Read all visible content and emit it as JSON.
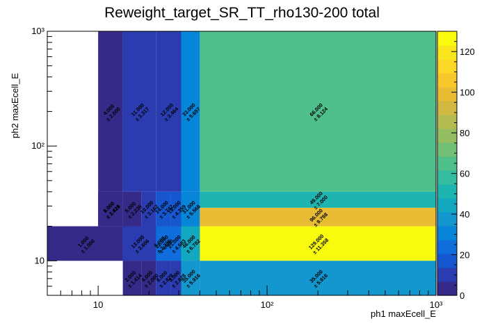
{
  "chart_data": {
    "type": "heatmap",
    "title": "Reweight_target_SR_TT_rho130-200 total",
    "xlabel": "ph1 maxEcell_E",
    "ylabel": "ph2 maxEcell_E",
    "xscale": "log",
    "yscale": "log",
    "xlim": [
      5,
      1000
    ],
    "ylim": [
      5,
      1000
    ],
    "zlim": [
      0,
      130
    ],
    "x_tick_labels": [
      "10",
      "10²",
      "10³"
    ],
    "y_tick_labels": [
      "10",
      "10²",
      "10³"
    ],
    "colorbar_ticks": [
      "0",
      "20",
      "40",
      "60",
      "80",
      "100",
      "120"
    ],
    "x_bin_edges": [
      5,
      10,
      14,
      18,
      22,
      27,
      31,
      40,
      1000
    ],
    "y_bin_edges": [
      5,
      10,
      20,
      29,
      40,
      1000
    ],
    "cells": [
      {
        "x": [
          5,
          14
        ],
        "y": [
          10,
          20
        ],
        "value": 1,
        "label": "1.000",
        "error": "± 1.000"
      },
      {
        "x": [
          14,
          40
        ],
        "y": [
          10,
          20
        ],
        "value": 5,
        "label": "5.000",
        "error": "± 2.236"
      },
      {
        "x": [
          14,
          22
        ],
        "y": [
          10,
          20
        ],
        "value": 13,
        "label": "13.000",
        "error": "± 3.606"
      },
      {
        "x": [
          22,
          27
        ],
        "y": [
          10,
          20
        ],
        "value": 22,
        "label": "22.000",
        "error": "± 4.690"
      },
      {
        "x": [
          27,
          31
        ],
        "y": [
          10,
          20
        ],
        "value": 21,
        "label": "21.000",
        "error": "± 4.583"
      },
      {
        "x": [
          31,
          40
        ],
        "y": [
          10,
          20
        ],
        "value": 46,
        "label": "46.000",
        "error": "± 6.782"
      },
      {
        "x": [
          40,
          1000
        ],
        "y": [
          10,
          20
        ],
        "value": 129,
        "label": "129.000",
        "error": "± 11.358"
      },
      {
        "x": [
          10,
          14
        ],
        "y": [
          20,
          40
        ],
        "value": 8,
        "label": "8.000",
        "error": "± 2.828"
      },
      {
        "x": [
          10,
          14
        ],
        "y": [
          20,
          40
        ],
        "value": 2,
        "label": "2.000",
        "error": "± 1.414"
      },
      {
        "x": [
          14,
          18
        ],
        "y": [
          20,
          40
        ],
        "value": 5,
        "label": "5.000",
        "error": "± 2.236"
      },
      {
        "x": [
          18,
          22
        ],
        "y": [
          20,
          40
        ],
        "value": 10,
        "label": "10.000",
        "error": "± 3.162"
      },
      {
        "x": [
          22,
          27
        ],
        "y": [
          20,
          40
        ],
        "value": 14,
        "label": "14.000",
        "error": "± 3.742"
      },
      {
        "x": [
          27,
          31
        ],
        "y": [
          20,
          40
        ],
        "value": 19,
        "label": "19.000",
        "error": "± 4.359"
      },
      {
        "x": [
          31,
          40
        ],
        "y": [
          20,
          40
        ],
        "value": 31,
        "label": "31.000",
        "error": "± 5.568"
      },
      {
        "x": [
          40,
          1000
        ],
        "y": [
          20,
          29
        ],
        "value": 96,
        "label": "96.000",
        "error": "± 9.798"
      },
      {
        "x": [
          40,
          1000
        ],
        "y": [
          29,
          40
        ],
        "value": 49,
        "label": "49.000",
        "error": "± 7.000"
      },
      {
        "x": [
          10,
          14
        ],
        "y": [
          40,
          1000
        ],
        "value": 4,
        "label": "4.000",
        "error": "± 2.000"
      },
      {
        "x": [
          14,
          22
        ],
        "y": [
          40,
          1000
        ],
        "value": 11,
        "label": "11.000",
        "error": "± 3.317"
      },
      {
        "x": [
          22,
          31
        ],
        "y": [
          40,
          1000
        ],
        "value": 12,
        "label": "12.000",
        "error": "± 3.464"
      },
      {
        "x": [
          31,
          40
        ],
        "y": [
          40,
          1000
        ],
        "value": 33,
        "label": "33.000",
        "error": "± 5.657"
      },
      {
        "x": [
          40,
          1000
        ],
        "y": [
          40,
          1000
        ],
        "value": 66,
        "label": "66.000",
        "error": "± 8.124"
      },
      {
        "x": [
          14,
          18
        ],
        "y": [
          5,
          10
        ],
        "value": 2,
        "label": "2.000",
        "error": "± 1.414"
      },
      {
        "x": [
          18,
          22
        ],
        "y": [
          5,
          10
        ],
        "value": 4,
        "label": "4.000",
        "error": "± 2.000"
      },
      {
        "x": [
          22,
          27
        ],
        "y": [
          5,
          10
        ],
        "value": 8,
        "label": "8.000",
        "error": "± 2.828"
      },
      {
        "x": [
          27,
          31
        ],
        "y": [
          5,
          10
        ],
        "value": 8,
        "label": "8.000",
        "error": "± 2.828"
      },
      {
        "x": [
          31,
          40
        ],
        "y": [
          5,
          10
        ],
        "value": 35,
        "label": "35.000",
        "error": "± 5.916"
      },
      {
        "x": [
          40,
          1000
        ],
        "y": [
          5,
          10
        ],
        "value": 35,
        "label": "35.000",
        "error": "± 5.916"
      }
    ]
  },
  "colors": {
    "background": "#ffffff",
    "palette": [
      "#352a87",
      "#2b3cb0",
      "#1657d0",
      "#0f6edb",
      "#0785d9",
      "#1397ce",
      "#12a8c0",
      "#1eb5b0",
      "#33bca0",
      "#4fbf8c",
      "#72bf76",
      "#93be62",
      "#b4bb50",
      "#d1b842",
      "#e8bd34",
      "#f8c72b",
      "#fbd726",
      "#f8e61c",
      "#f9fb0e"
    ]
  }
}
